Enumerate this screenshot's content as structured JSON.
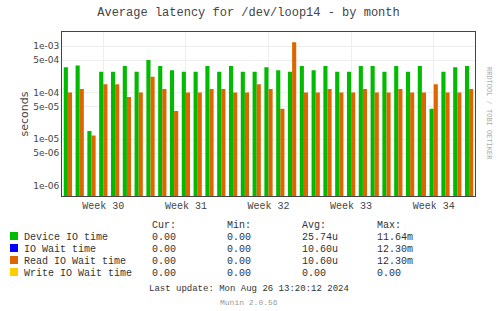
{
  "chart_data": {
    "type": "bar",
    "title": "Average latency for /dev/loop14 - by month",
    "y_label": "seconds",
    "categories": [
      null,
      null,
      null,
      "Week 30",
      null,
      null,
      null,
      null,
      null,
      null,
      "Week 31",
      null,
      null,
      null,
      null,
      null,
      null,
      "Week 32",
      null,
      null,
      null,
      null,
      null,
      null,
      "Week 33",
      null,
      null,
      null,
      null,
      null,
      null,
      "Week 34",
      null,
      null,
      null
    ],
    "series": [
      {
        "name": "Device IO time",
        "color": "#00bb00",
        "values": [
          0.00035,
          0.00038,
          1.5e-05,
          0.00028,
          0.00028,
          0.00037,
          0.00028,
          0.0005,
          0.00037,
          0.0003,
          0.00028,
          0.00028,
          0.00037,
          0.00028,
          0.00037,
          0.00028,
          0.00028,
          0.00035,
          0.0003,
          0.00028,
          0.00037,
          0.0003,
          0.00037,
          0.00028,
          0.00028,
          0.00037,
          0.00037,
          0.00028,
          0.00037,
          0.00028,
          0.00037,
          4.5e-05,
          0.00028,
          0.00035,
          0.00037
        ],
        "stats": [
          "0.00",
          "0.00",
          "25.74u",
          "11.64m"
        ]
      },
      {
        "name": "IO Wait time",
        "color": "#0000ff",
        "values": [
          null,
          null,
          null,
          null,
          null,
          null,
          null,
          null,
          null,
          null,
          null,
          null,
          null,
          null,
          null,
          null,
          null,
          null,
          null,
          null,
          null,
          null,
          null,
          null,
          null,
          null,
          null,
          null,
          null,
          null,
          null,
          null,
          null,
          null,
          null
        ],
        "stats": [
          "0.00",
          "0.00",
          "10.60u",
          "12.30m"
        ]
      },
      {
        "name": "Read IO Wait time",
        "color": "#dd6600",
        "values": [
          0.0001,
          0.00012,
          1.2e-05,
          0.00015,
          0.00015,
          8e-05,
          0.0001,
          0.00022,
          0.00012,
          4e-05,
          0.0001,
          0.0001,
          0.00012,
          0.00012,
          0.0001,
          0.0001,
          0.00015,
          0.00012,
          4.5e-05,
          0.0012,
          0.0001,
          0.0001,
          0.00012,
          0.0001,
          0.0001,
          0.00012,
          0.0001,
          0.0001,
          0.00012,
          0.0001,
          0.0001,
          0.00015,
          0.0001,
          0.0001,
          0.00012
        ],
        "stats": [
          "0.00",
          "0.00",
          "10.60u",
          "12.30m"
        ]
      },
      {
        "name": "Write IO Wait time",
        "color": "#ffcc00",
        "values": [
          null,
          null,
          null,
          null,
          null,
          null,
          null,
          null,
          null,
          null,
          null,
          null,
          null,
          null,
          null,
          null,
          null,
          null,
          null,
          null,
          null,
          null,
          null,
          null,
          null,
          null,
          null,
          null,
          null,
          null,
          null,
          null,
          null,
          null,
          null
        ],
        "stats": [
          "0.00",
          "0.00",
          "0.00",
          "0.00"
        ]
      }
    ],
    "table_headers": [
      "Cur:",
      "Min:",
      "Avg:",
      "Max:"
    ],
    "annotations": [
      "Last update: Mon Aug 26 13:20:12 2024",
      "Munin 2.0.56",
      "RRDTOOL / TOBI OETIKER"
    ],
    "log": "y",
    "ylim": [
      6e-07,
      0.002
    ],
    "yticks": [
      {
        "value": 1e-06,
        "label": "1e-06"
      },
      {
        "value": 5e-06,
        "label": "5e-06"
      },
      {
        "value": 1e-05,
        "label": "1e-05"
      },
      {
        "value": 5e-05,
        "label": "5e-05"
      },
      {
        "value": 0.0001,
        "label": "1e-04"
      },
      {
        "value": 0.0005,
        "label": "5e-04"
      },
      {
        "value": 0.001,
        "label": "1e-03"
      }
    ],
    "grid": true
  }
}
